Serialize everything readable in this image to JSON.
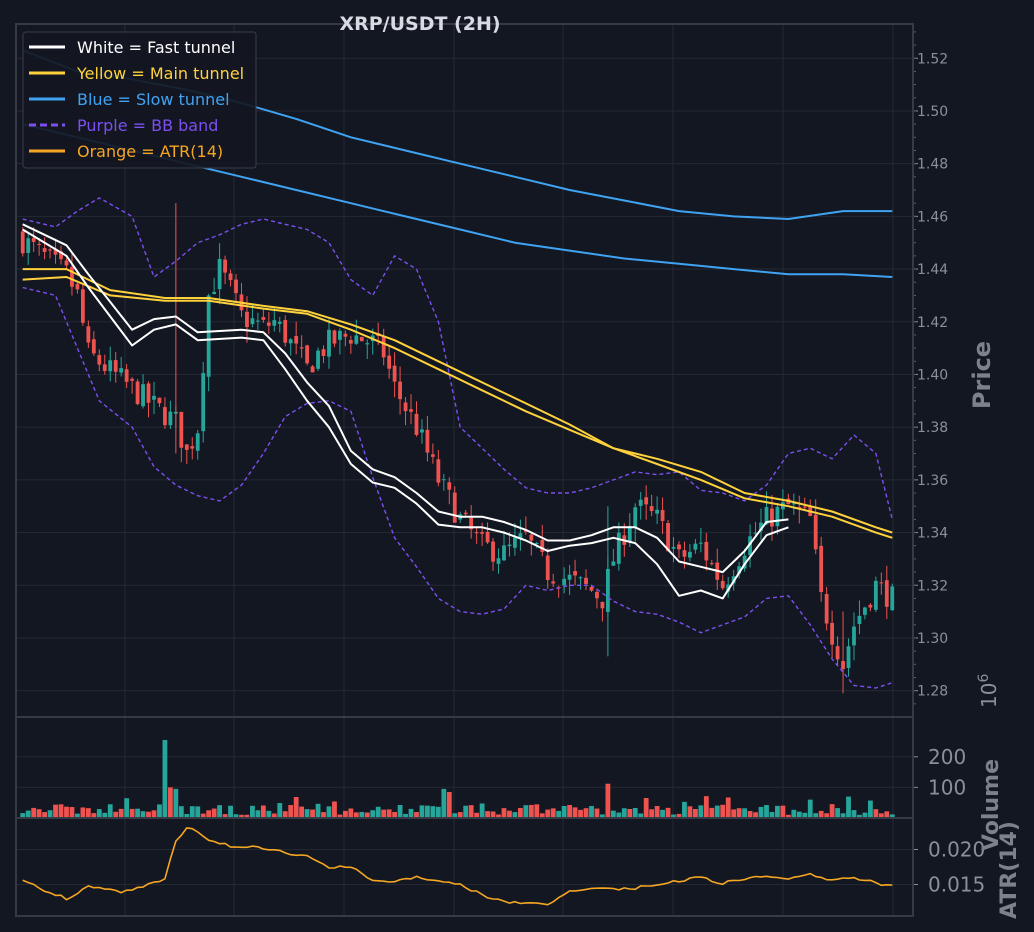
{
  "colors": {
    "background": "#131722",
    "panel_border": "#363a45",
    "grid": "#242833",
    "fast": "#ffffff",
    "main": "#ffd23c",
    "slow": "#3fa3f2",
    "bb": "#7c4ff0",
    "atr": "#f5a623",
    "up": "#26a69a",
    "down": "#ef5350"
  },
  "chart_data": [
    {
      "type": "candlestick",
      "title": "XRP/USDT (2H)",
      "ylabel": "Price",
      "ylim": [
        1.27,
        1.533
      ],
      "yticks": [
        "1.28",
        "1.30",
        "1.32",
        "1.34",
        "1.36",
        "1.38",
        "1.40",
        "1.42",
        "1.44",
        "1.46",
        "1.48",
        "1.50",
        "1.52"
      ],
      "legend": {
        "placement": "top-left",
        "entries": [
          {
            "label": "White = Fast tunnel",
            "color": "#ffffff",
            "style": "solid"
          },
          {
            "label": "Yellow = Main tunnel",
            "color": "#ffd23c",
            "style": "solid"
          },
          {
            "label": "Blue = Slow tunnel",
            "color": "#3fa3f2",
            "style": "solid"
          },
          {
            "label": "Purple = BB band",
            "color": "#7c4ff0",
            "style": "dashed"
          },
          {
            "label": "Orange = ATR(14)",
            "color": "#f5a623",
            "style": "solid"
          }
        ]
      },
      "candle_count": 160,
      "close_path": [
        [
          0,
          1.451
        ],
        [
          8,
          1.438
        ],
        [
          10,
          1.43
        ],
        [
          12,
          1.408
        ],
        [
          18,
          1.398
        ],
        [
          24,
          1.388
        ],
        [
          28,
          1.382
        ],
        [
          30,
          1.37
        ],
        [
          32,
          1.38
        ],
        [
          34,
          1.43
        ],
        [
          36,
          1.44
        ],
        [
          38,
          1.432
        ],
        [
          40,
          1.422
        ],
        [
          44,
          1.418
        ],
        [
          46,
          1.42
        ],
        [
          48,
          1.415
        ],
        [
          52,
          1.402
        ],
        [
          54,
          1.408
        ],
        [
          56,
          1.412
        ],
        [
          60,
          1.415
        ],
        [
          64,
          1.412
        ],
        [
          66,
          1.408
        ],
        [
          68,
          1.395
        ],
        [
          72,
          1.38
        ],
        [
          76,
          1.36
        ],
        [
          80,
          1.345
        ],
        [
          84,
          1.335
        ],
        [
          88,
          1.332
        ],
        [
          92,
          1.338
        ],
        [
          96,
          1.325
        ],
        [
          100,
          1.322
        ],
        [
          104,
          1.318
        ],
        [
          106,
          1.315
        ],
        [
          108,
          1.33
        ],
        [
          112,
          1.35
        ],
        [
          116,
          1.345
        ],
        [
          120,
          1.33
        ],
        [
          124,
          1.335
        ],
        [
          128,
          1.32
        ],
        [
          132,
          1.335
        ],
        [
          136,
          1.345
        ],
        [
          140,
          1.35
        ],
        [
          144,
          1.345
        ],
        [
          146,
          1.315
        ],
        [
          148,
          1.302
        ],
        [
          150,
          1.29
        ],
        [
          152,
          1.305
        ],
        [
          156,
          1.32
        ],
        [
          159,
          1.315
        ]
      ],
      "tunnels": {
        "fast_a": [
          [
            0,
            1.457
          ],
          [
            8,
            1.449
          ],
          [
            12,
            1.438
          ],
          [
            20,
            1.417
          ],
          [
            24,
            1.421
          ],
          [
            28,
            1.422
          ],
          [
            32,
            1.416
          ],
          [
            40,
            1.417
          ],
          [
            44,
            1.416
          ],
          [
            48,
            1.408
          ],
          [
            52,
            1.397
          ],
          [
            56,
            1.388
          ],
          [
            60,
            1.371
          ],
          [
            64,
            1.364
          ],
          [
            68,
            1.361
          ],
          [
            72,
            1.355
          ],
          [
            76,
            1.348
          ],
          [
            80,
            1.346
          ],
          [
            84,
            1.346
          ],
          [
            88,
            1.344
          ],
          [
            92,
            1.341
          ],
          [
            96,
            1.337
          ],
          [
            100,
            1.337
          ],
          [
            104,
            1.339
          ],
          [
            108,
            1.342
          ],
          [
            112,
            1.342
          ],
          [
            116,
            1.338
          ],
          [
            120,
            1.329
          ],
          [
            124,
            1.327
          ],
          [
            128,
            1.325
          ],
          [
            132,
            1.333
          ],
          [
            136,
            1.344
          ],
          [
            140,
            1.345
          ]
        ],
        "fast_b": [
          [
            0,
            1.455
          ],
          [
            8,
            1.445
          ],
          [
            12,
            1.433
          ],
          [
            20,
            1.411
          ],
          [
            24,
            1.417
          ],
          [
            28,
            1.419
          ],
          [
            32,
            1.413
          ],
          [
            40,
            1.414
          ],
          [
            44,
            1.413
          ],
          [
            48,
            1.402
          ],
          [
            52,
            1.39
          ],
          [
            56,
            1.38
          ],
          [
            60,
            1.366
          ],
          [
            64,
            1.359
          ],
          [
            68,
            1.357
          ],
          [
            72,
            1.351
          ],
          [
            76,
            1.343
          ],
          [
            80,
            1.342
          ],
          [
            84,
            1.342
          ],
          [
            88,
            1.34
          ],
          [
            92,
            1.337
          ],
          [
            96,
            1.333
          ],
          [
            100,
            1.335
          ],
          [
            104,
            1.336
          ],
          [
            108,
            1.338
          ],
          [
            112,
            1.336
          ],
          [
            116,
            1.328
          ],
          [
            120,
            1.316
          ],
          [
            124,
            1.318
          ],
          [
            128,
            1.315
          ],
          [
            132,
            1.328
          ],
          [
            136,
            1.339
          ],
          [
            140,
            1.342
          ]
        ],
        "main_a": [
          [
            0,
            1.44
          ],
          [
            8,
            1.44
          ],
          [
            16,
            1.432
          ],
          [
            26,
            1.429
          ],
          [
            34,
            1.429
          ],
          [
            44,
            1.426
          ],
          [
            52,
            1.424
          ],
          [
            60,
            1.419
          ],
          [
            68,
            1.413
          ],
          [
            76,
            1.405
          ],
          [
            84,
            1.397
          ],
          [
            92,
            1.389
          ],
          [
            100,
            1.381
          ],
          [
            108,
            1.372
          ],
          [
            116,
            1.368
          ],
          [
            124,
            1.363
          ],
          [
            132,
            1.355
          ],
          [
            140,
            1.352
          ],
          [
            148,
            1.348
          ],
          [
            156,
            1.342
          ],
          [
            159,
            1.34
          ]
        ],
        "main_b": [
          [
            0,
            1.436
          ],
          [
            8,
            1.437
          ],
          [
            16,
            1.43
          ],
          [
            26,
            1.428
          ],
          [
            34,
            1.428
          ],
          [
            44,
            1.425
          ],
          [
            52,
            1.423
          ],
          [
            60,
            1.417
          ],
          [
            68,
            1.41
          ],
          [
            76,
            1.402
          ],
          [
            84,
            1.394
          ],
          [
            92,
            1.386
          ],
          [
            100,
            1.379
          ],
          [
            108,
            1.372
          ],
          [
            116,
            1.366
          ],
          [
            124,
            1.36
          ],
          [
            132,
            1.353
          ],
          [
            140,
            1.35
          ],
          [
            148,
            1.346
          ],
          [
            156,
            1.34
          ],
          [
            159,
            1.338
          ]
        ],
        "slow_a": [
          [
            0,
            1.523
          ],
          [
            10,
            1.515
          ],
          [
            20,
            1.512
          ],
          [
            30,
            1.508
          ],
          [
            40,
            1.503
          ],
          [
            50,
            1.497
          ],
          [
            60,
            1.49
          ],
          [
            70,
            1.485
          ],
          [
            80,
            1.48
          ],
          [
            90,
            1.475
          ],
          [
            100,
            1.47
          ],
          [
            110,
            1.466
          ],
          [
            120,
            1.462
          ],
          [
            130,
            1.46
          ],
          [
            140,
            1.459
          ],
          [
            150,
            1.462
          ],
          [
            159,
            1.462
          ]
        ],
        "slow_b": [
          [
            0,
            1.495
          ],
          [
            10,
            1.49
          ],
          [
            20,
            1.485
          ],
          [
            30,
            1.48
          ],
          [
            40,
            1.475
          ],
          [
            50,
            1.47
          ],
          [
            60,
            1.465
          ],
          [
            70,
            1.46
          ],
          [
            80,
            1.455
          ],
          [
            90,
            1.45
          ],
          [
            100,
            1.447
          ],
          [
            110,
            1.444
          ],
          [
            120,
            1.442
          ],
          [
            130,
            1.44
          ],
          [
            140,
            1.438
          ],
          [
            150,
            1.438
          ],
          [
            159,
            1.437
          ]
        ]
      },
      "bb_upper": [
        [
          0,
          1.459
        ],
        [
          6,
          1.456
        ],
        [
          10,
          1.462
        ],
        [
          14,
          1.467
        ],
        [
          20,
          1.46
        ],
        [
          24,
          1.437
        ],
        [
          28,
          1.443
        ],
        [
          32,
          1.45
        ],
        [
          36,
          1.453
        ],
        [
          40,
          1.457
        ],
        [
          44,
          1.459
        ],
        [
          48,
          1.457
        ],
        [
          52,
          1.455
        ],
        [
          56,
          1.45
        ],
        [
          60,
          1.436
        ],
        [
          64,
          1.43
        ],
        [
          68,
          1.445
        ],
        [
          72,
          1.44
        ],
        [
          76,
          1.42
        ],
        [
          80,
          1.38
        ],
        [
          84,
          1.372
        ],
        [
          88,
          1.364
        ],
        [
          92,
          1.357
        ],
        [
          96,
          1.355
        ],
        [
          100,
          1.355
        ],
        [
          104,
          1.357
        ],
        [
          108,
          1.36
        ],
        [
          112,
          1.363
        ],
        [
          116,
          1.362
        ],
        [
          120,
          1.363
        ],
        [
          124,
          1.356
        ],
        [
          128,
          1.355
        ],
        [
          132,
          1.352
        ],
        [
          136,
          1.358
        ],
        [
          140,
          1.37
        ],
        [
          144,
          1.372
        ],
        [
          148,
          1.368
        ],
        [
          152,
          1.377
        ],
        [
          156,
          1.37
        ],
        [
          159,
          1.345
        ]
      ],
      "bb_lower": [
        [
          0,
          1.433
        ],
        [
          6,
          1.43
        ],
        [
          10,
          1.41
        ],
        [
          14,
          1.39
        ],
        [
          20,
          1.38
        ],
        [
          24,
          1.365
        ],
        [
          28,
          1.358
        ],
        [
          32,
          1.354
        ],
        [
          36,
          1.352
        ],
        [
          40,
          1.358
        ],
        [
          44,
          1.37
        ],
        [
          48,
          1.384
        ],
        [
          52,
          1.389
        ],
        [
          56,
          1.39
        ],
        [
          60,
          1.386
        ],
        [
          64,
          1.361
        ],
        [
          68,
          1.338
        ],
        [
          72,
          1.327
        ],
        [
          76,
          1.315
        ],
        [
          80,
          1.31
        ],
        [
          84,
          1.309
        ],
        [
          88,
          1.311
        ],
        [
          92,
          1.32
        ],
        [
          96,
          1.318
        ],
        [
          100,
          1.32
        ],
        [
          104,
          1.32
        ],
        [
          108,
          1.314
        ],
        [
          112,
          1.31
        ],
        [
          116,
          1.309
        ],
        [
          120,
          1.306
        ],
        [
          124,
          1.302
        ],
        [
          128,
          1.305
        ],
        [
          132,
          1.308
        ],
        [
          136,
          1.315
        ],
        [
          140,
          1.316
        ],
        [
          144,
          1.305
        ],
        [
          148,
          1.292
        ],
        [
          152,
          1.282
        ],
        [
          156,
          1.281
        ],
        [
          159,
          1.283
        ]
      ]
    },
    {
      "type": "bar",
      "ylabel": "Volume",
      "y_scale_label": "10^6",
      "ylim": [
        0,
        330
      ],
      "yticks": [
        "100",
        "200"
      ],
      "values_per_candle": "same 160 candles as price panel",
      "spikes": [
        [
          26,
          255
        ],
        [
          27,
          100
        ],
        [
          28,
          95
        ],
        [
          77,
          95
        ],
        [
          78,
          85
        ],
        [
          107,
          112
        ],
        [
          144,
          60
        ],
        [
          151,
          70
        ]
      ],
      "typical_range": [
        10,
        45
      ]
    },
    {
      "type": "line",
      "ylabel": "ATR(14)",
      "ylim": [
        0.0105,
        0.0245
      ],
      "yticks": [
        "0.015",
        "0.020"
      ],
      "x": [
        0,
        4,
        8,
        12,
        14,
        18,
        22,
        26,
        28,
        30,
        32,
        34,
        36,
        38,
        40,
        44,
        48,
        52,
        56,
        60,
        64,
        68,
        72,
        76,
        80,
        84,
        88,
        92,
        96,
        100,
        104,
        108,
        112,
        116,
        120,
        124,
        128,
        132,
        136,
        140,
        144,
        148,
        152,
        156,
        159
      ],
      "values": [
        0.0158,
        0.0142,
        0.013,
        0.0147,
        0.0147,
        0.014,
        0.0148,
        0.0158,
        0.0212,
        0.0232,
        0.0226,
        0.0214,
        0.021,
        0.0205,
        0.0204,
        0.0202,
        0.0195,
        0.0192,
        0.0175,
        0.0175,
        0.0155,
        0.0155,
        0.016,
        0.0157,
        0.015,
        0.0135,
        0.0125,
        0.0123,
        0.0122,
        0.0141,
        0.0145,
        0.0144,
        0.0145,
        0.015,
        0.0155,
        0.016,
        0.0152,
        0.0158,
        0.0162,
        0.0158,
        0.0165,
        0.0155,
        0.016,
        0.0152,
        0.0148
      ]
    }
  ]
}
